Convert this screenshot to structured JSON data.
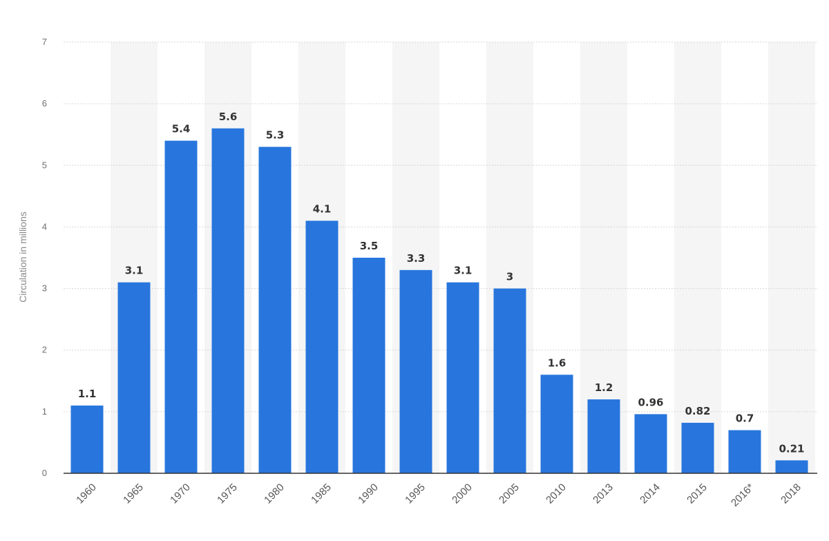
{
  "chart_data": {
    "type": "bar",
    "ylabel": "Circulation in millions",
    "ylim": [
      0,
      7
    ],
    "yticks": [
      "0",
      "1",
      "2",
      "3",
      "4",
      "5",
      "6",
      "7"
    ],
    "categories": [
      "1960",
      "1965",
      "1970",
      "1975",
      "1980",
      "1985",
      "1990",
      "1995",
      "2000",
      "2005",
      "2010",
      "2013",
      "2014",
      "2015",
      "2016*",
      "2018"
    ],
    "values": [
      1.1,
      3.1,
      5.4,
      5.6,
      5.3,
      4.1,
      3.5,
      3.3,
      3.1,
      3,
      1.6,
      1.2,
      0.96,
      0.82,
      0.7,
      0.21
    ],
    "labels": [
      "1.1",
      "3.1",
      "5.4",
      "5.6",
      "5.3",
      "4.1",
      "3.5",
      "3.3",
      "3.1",
      "3",
      "1.6",
      "1.2",
      "0.96",
      "0.82",
      "0.7",
      "0.21"
    ],
    "grid": true,
    "bar_color": "#2876dd",
    "alt_band_color": "#f5f5f5",
    "gridline_color": "#d6d6d6",
    "axis_color": "#333333"
  }
}
